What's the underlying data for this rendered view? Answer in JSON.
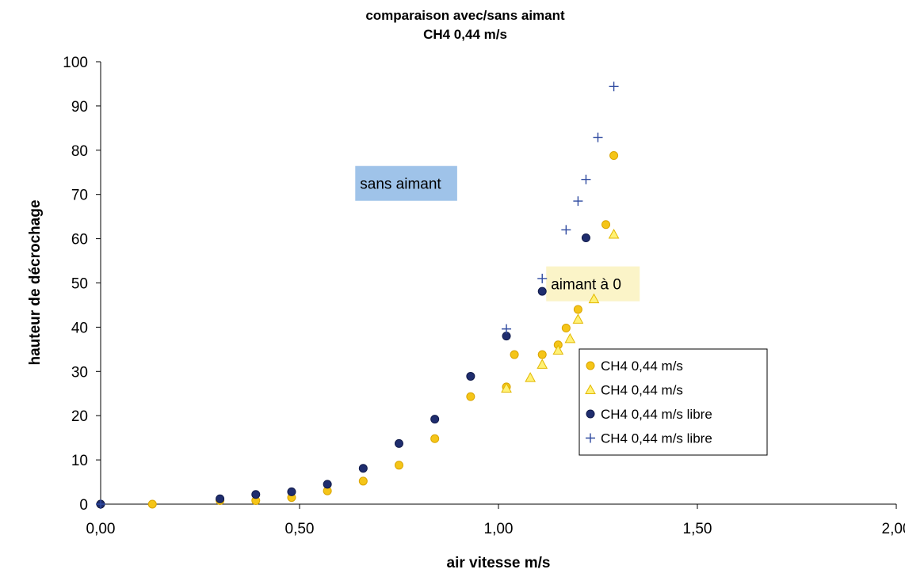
{
  "chart_data": {
    "type": "scatter",
    "title": "comparaison avec/sans aimant",
    "subtitle": "CH4 0,44 m/s",
    "xlabel": "air vitesse m/s",
    "ylabel": "hauteur de décrochage",
    "xlim": [
      0,
      2
    ],
    "ylim": [
      0,
      100
    ],
    "xticks": [
      0,
      0.5,
      1,
      1.5,
      2
    ],
    "xtick_labels": [
      "0,00",
      "0,50",
      "1,00",
      "1,50",
      "2,00"
    ],
    "yticks": [
      0,
      10,
      20,
      30,
      40,
      50,
      60,
      70,
      80,
      90,
      100
    ],
    "ytick_labels": [
      "0",
      "10",
      "20",
      "30",
      "40",
      "50",
      "60",
      "70",
      "80",
      "90",
      "100"
    ],
    "grid": false,
    "legend_position": "right",
    "series": [
      {
        "name": "CH4 0,44 m/s",
        "marker": "circle",
        "color": "#f5c518",
        "stroke": "#d9a400",
        "points": [
          [
            0,
            0
          ],
          [
            0.13,
            0
          ],
          [
            0.3,
            0.8
          ],
          [
            0.39,
            0.8
          ],
          [
            0.48,
            1.5
          ],
          [
            0.57,
            3
          ],
          [
            0.66,
            5.2
          ],
          [
            0.75,
            8.8
          ],
          [
            0.84,
            14.8
          ],
          [
            0.93,
            24.3
          ],
          [
            1.02,
            26.5
          ],
          [
            1.04,
            33.8
          ],
          [
            1.11,
            33.8
          ],
          [
            1.15,
            36
          ],
          [
            1.17,
            39.8
          ],
          [
            1.2,
            44
          ],
          [
            1.27,
            63.2
          ],
          [
            1.29,
            78.8
          ]
        ]
      },
      {
        "name": "CH4 0,44 m/s",
        "marker": "triangle",
        "color": "#fff176",
        "stroke": "#e3b800",
        "points": [
          [
            1.02,
            26.2
          ],
          [
            1.08,
            28.6
          ],
          [
            1.11,
            31.6
          ],
          [
            1.15,
            34.8
          ],
          [
            1.18,
            37.4
          ],
          [
            1.2,
            41.8
          ],
          [
            1.24,
            46.4
          ],
          [
            1.29,
            61
          ]
        ]
      },
      {
        "name": "CH4 0,44 m/s libre",
        "marker": "circle",
        "color": "#1f2d6e",
        "stroke": "#101a4a",
        "points": [
          [
            0,
            0
          ],
          [
            0.3,
            1.2
          ],
          [
            0.39,
            2.2
          ],
          [
            0.48,
            2.8
          ],
          [
            0.57,
            4.5
          ],
          [
            0.66,
            8.1
          ],
          [
            0.75,
            13.7
          ],
          [
            0.84,
            19.2
          ],
          [
            0.93,
            28.9
          ],
          [
            1.02,
            38
          ],
          [
            1.11,
            48.1
          ],
          [
            1.22,
            60.2
          ]
        ]
      },
      {
        "name": "CH4 0,44  m/s libre",
        "marker": "plus",
        "color": "#2f4aa0",
        "stroke": "#2f4aa0",
        "points": [
          [
            0,
            0
          ],
          [
            1.02,
            39.6
          ],
          [
            1.11,
            51
          ],
          [
            1.17,
            62
          ],
          [
            1.2,
            68.5
          ],
          [
            1.22,
            73.4
          ],
          [
            1.25,
            82.9
          ],
          [
            1.29,
            94.4
          ]
        ]
      }
    ],
    "annotations": [
      {
        "text": "sans aimant",
        "x": 0.64,
        "y": 72.5,
        "background": "#9fc3e9"
      },
      {
        "text": "aimant à 0",
        "x": 1.12,
        "y": 49.8,
        "background": "#fbf4c8"
      }
    ]
  }
}
